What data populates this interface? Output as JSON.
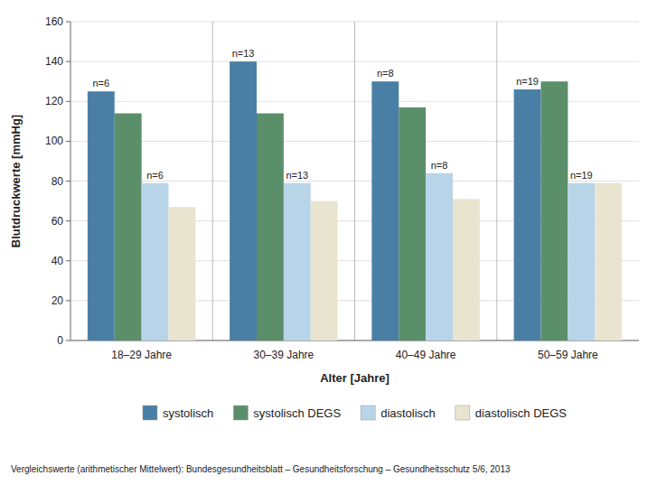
{
  "chart_data": {
    "type": "bar",
    "categories": [
      "18–29 Jahre",
      "30–39 Jahre",
      "40–49 Jahre",
      "50–59 Jahre"
    ],
    "series": [
      {
        "name": "systolisch",
        "color": "#4a7fa5",
        "values": [
          125,
          140,
          130,
          126
        ]
      },
      {
        "name": "systolisch DEGS",
        "color": "#5a8f6a",
        "values": [
          114,
          114,
          117,
          130
        ]
      },
      {
        "name": "diastolisch",
        "color": "#b8d4e8",
        "values": [
          79,
          79,
          84,
          79
        ]
      },
      {
        "name": "diastolisch DEGS",
        "color": "#e8e4d0",
        "values": [
          67,
          70,
          71,
          79
        ]
      }
    ],
    "annotations": [
      "n=6",
      "n=13",
      "n=8",
      "n=19"
    ],
    "xlabel": "Alter [Jahre]",
    "ylabel": "Blutdruckwerte [mmHg]",
    "ylim": [
      0,
      160
    ],
    "yticks": [
      0,
      20,
      40,
      60,
      80,
      100,
      120,
      140,
      160
    ],
    "grid": true,
    "legend": "bottom",
    "footnote": "Vergleichswerte (arithmetischer Mittelwert): Bundesgesundheitsblatt – Gesundheitsforschung – Gesundheitsschutz 5/6, 2013"
  }
}
